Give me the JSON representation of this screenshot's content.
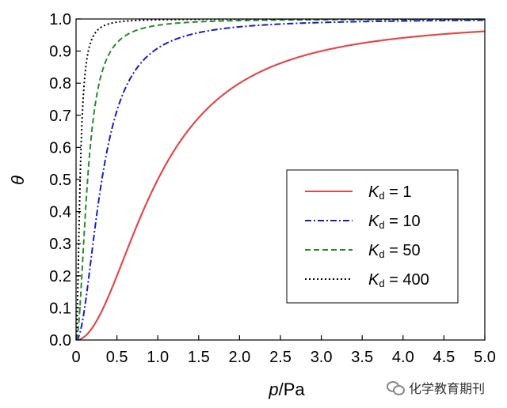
{
  "chart_data": {
    "type": "line",
    "title": "",
    "xlabel": {
      "italic": "p",
      "rest": "/Pa"
    },
    "ylabel": "θ",
    "xlim": [
      0,
      5
    ],
    "ylim": [
      0,
      1
    ],
    "x_ticks": [
      "0",
      "0.5",
      "1.0",
      "1.5",
      "2.0",
      "2.5",
      "3.0",
      "3.5",
      "4.0",
      "4.5",
      "5.0"
    ],
    "y_ticks": [
      "0.0",
      "0.1",
      "0.2",
      "0.3",
      "0.4",
      "0.5",
      "0.6",
      "0.7",
      "0.8",
      "0.9",
      "1.0"
    ],
    "grid": false,
    "legend_position": "center-right",
    "series": [
      {
        "name": "Kd = 1",
        "K": 1,
        "style": "solid",
        "color": "#e04a4a",
        "legend": {
          "main": "K",
          "sub": "d",
          "rest": " = 1"
        }
      },
      {
        "name": "Kd = 10",
        "K": 10,
        "style": "dashdot",
        "color": "#1a1acc",
        "legend": {
          "main": "K",
          "sub": "d",
          "rest": " = 10"
        }
      },
      {
        "name": "Kd = 50",
        "K": 50,
        "style": "dashed",
        "color": "#2a8a2a",
        "legend": {
          "main": "K",
          "sub": "d",
          "rest": " = 50"
        }
      },
      {
        "name": "Kd = 400",
        "K": 400,
        "style": "dotted",
        "color": "#000000",
        "legend": {
          "main": "K",
          "sub": "d",
          "rest": " = 400"
        }
      }
    ]
  },
  "watermark": {
    "text": "化学教育期刊",
    "icon": "wechat-icon"
  }
}
